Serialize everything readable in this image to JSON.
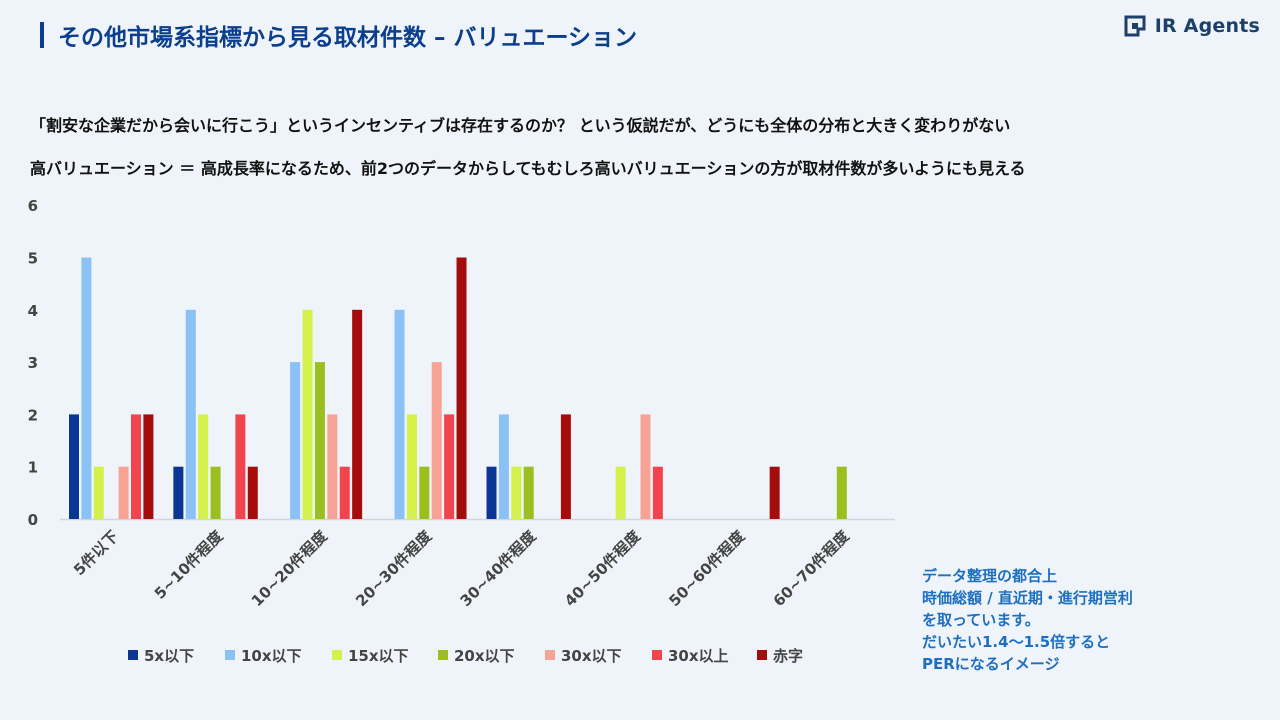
{
  "header": {
    "title": "その他市場系指標から見る取材件数 – バリュエーション",
    "logo_text": "IR Agents"
  },
  "subtitle": {
    "line1": "「割安な企業だから会いに行こう」というインセンティブは存在するのか？ という仮説だが、どうにも全体の分布と大きく変わりがない",
    "line2": "高バリュエーション ＝ 高成長率になるため、前2つのデータからしてもむしろ高いバリュエーションの方が取材件数が多いようにも見える"
  },
  "note": {
    "lines": [
      "データ整理の都合上",
      "時価総額 / 直近期・進行期営利",
      "を取っています。",
      "だいたい1.4〜1.5倍すると",
      "PERになるイメージ"
    ]
  },
  "chart_data": {
    "type": "bar",
    "categories": [
      "5件以下",
      "5~10件程度",
      "10~20件程度",
      "20~30件程度",
      "30~40件程度",
      "40~50件程度",
      "50~60件程度",
      "60~70件程度"
    ],
    "series": [
      {
        "name": "5x以下",
        "color": "#0a3593",
        "values": [
          2,
          1,
          0,
          0,
          1,
          0,
          0,
          0
        ]
      },
      {
        "name": "10x以下",
        "color": "#8cc1f5",
        "values": [
          5,
          4,
          3,
          4,
          2,
          0,
          0,
          0
        ]
      },
      {
        "name": "15x以下",
        "color": "#d4f04a",
        "values": [
          1,
          2,
          4,
          2,
          1,
          1,
          0,
          0
        ]
      },
      {
        "name": "20x以下",
        "color": "#9bbf1e",
        "values": [
          0,
          1,
          3,
          1,
          1,
          0,
          0,
          1
        ]
      },
      {
        "name": "30x以下",
        "color": "#f6a395",
        "values": [
          1,
          0,
          2,
          3,
          0,
          2,
          0,
          0
        ]
      },
      {
        "name": "30x以上",
        "color": "#f2444f",
        "values": [
          2,
          2,
          1,
          2,
          0,
          1,
          0,
          0
        ]
      },
      {
        "name": "赤字",
        "color": "#a50d0d",
        "values": [
          2,
          1,
          4,
          5,
          2,
          0,
          1,
          0
        ]
      }
    ],
    "ylim": [
      0,
      6
    ],
    "yticks": [
      0,
      1,
      2,
      3,
      4,
      5,
      6
    ],
    "grid": false,
    "legend": "bottom",
    "xlabel": "",
    "ylabel": ""
  }
}
